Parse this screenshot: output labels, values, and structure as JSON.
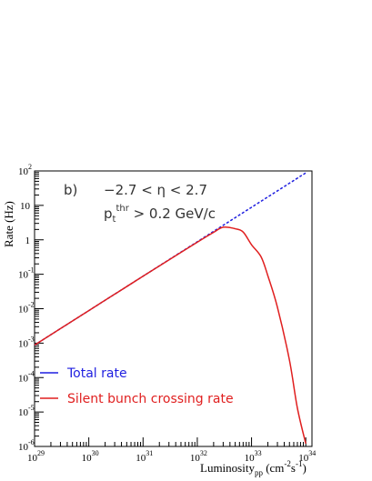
{
  "chart_data": {
    "type": "line",
    "panel_label": "b)",
    "eta_cut": "−2.7 < η < 2.7",
    "pt_cut": {
      "base": "p",
      "sub": "t",
      "sup": "thr",
      "rest": " > 0.2 GeV/c"
    },
    "ylabel": "Rate (Hz)",
    "xlabel": {
      "main": "Luminosity",
      "sub": "pp",
      "unit_open": " (cm",
      "exp1": "-2",
      "mid": "s",
      "exp2": "-1",
      "close": ")"
    },
    "x_scale": "log",
    "y_scale": "log",
    "xlim": [
      1e+29,
      1.3e+34
    ],
    "ylim": [
      1e-06,
      100
    ],
    "x_ticks": [
      {
        "exp": "29",
        "value": 1e+29
      },
      {
        "exp": "30",
        "value": 1e+30
      },
      {
        "exp": "31",
        "value": 1e+31
      },
      {
        "exp": "32",
        "value": 1e+32
      },
      {
        "exp": "33",
        "value": 1e+33
      },
      {
        "exp": "34",
        "value": 1e+34
      }
    ],
    "y_ticks": [
      {
        "exp": "2",
        "value": 100
      },
      {
        "exp": "",
        "label": "10",
        "value": 10
      },
      {
        "exp": "",
        "label": "1",
        "value": 1
      },
      {
        "exp": "-1",
        "value": 0.1
      },
      {
        "exp": "-2",
        "value": 0.01
      },
      {
        "exp": "-3",
        "value": 0.001
      },
      {
        "exp": "-4",
        "value": 0.0001
      },
      {
        "exp": "-5",
        "value": 1e-05
      },
      {
        "exp": "-6",
        "value": 1e-06
      }
    ],
    "legend_position": "bottom-left",
    "series": [
      {
        "name": "Total rate",
        "color": "#1f1fe0",
        "style": "dashed",
        "x": [
          1e+29,
          1e+30,
          1e+31,
          1e+32,
          1e+33,
          1e+34
        ],
        "y": [
          0.00088,
          0.0088,
          0.088,
          0.88,
          8.8,
          88
        ]
      },
      {
        "name": "Silent bunch crossing rate",
        "color": "#e01f1f",
        "style": "solid",
        "x": [
          1e+29,
          3e+29,
          1e+30,
          3e+30,
          1e+31,
          3e+31,
          1e+32,
          2e+32,
          3e+32,
          5e+32,
          7e+32,
          1e+33,
          1.5e+33,
          2e+33,
          3e+33,
          5e+33,
          7e+33,
          1e+34
        ],
        "y": [
          0.00088,
          0.00264,
          0.0088,
          0.0264,
          0.0876,
          0.261,
          0.852,
          1.65,
          2.32,
          2.1,
          1.68,
          0.72,
          0.32,
          0.09,
          0.011,
          0.00032,
          1.3e-05,
          1.2e-06
        ]
      }
    ]
  }
}
